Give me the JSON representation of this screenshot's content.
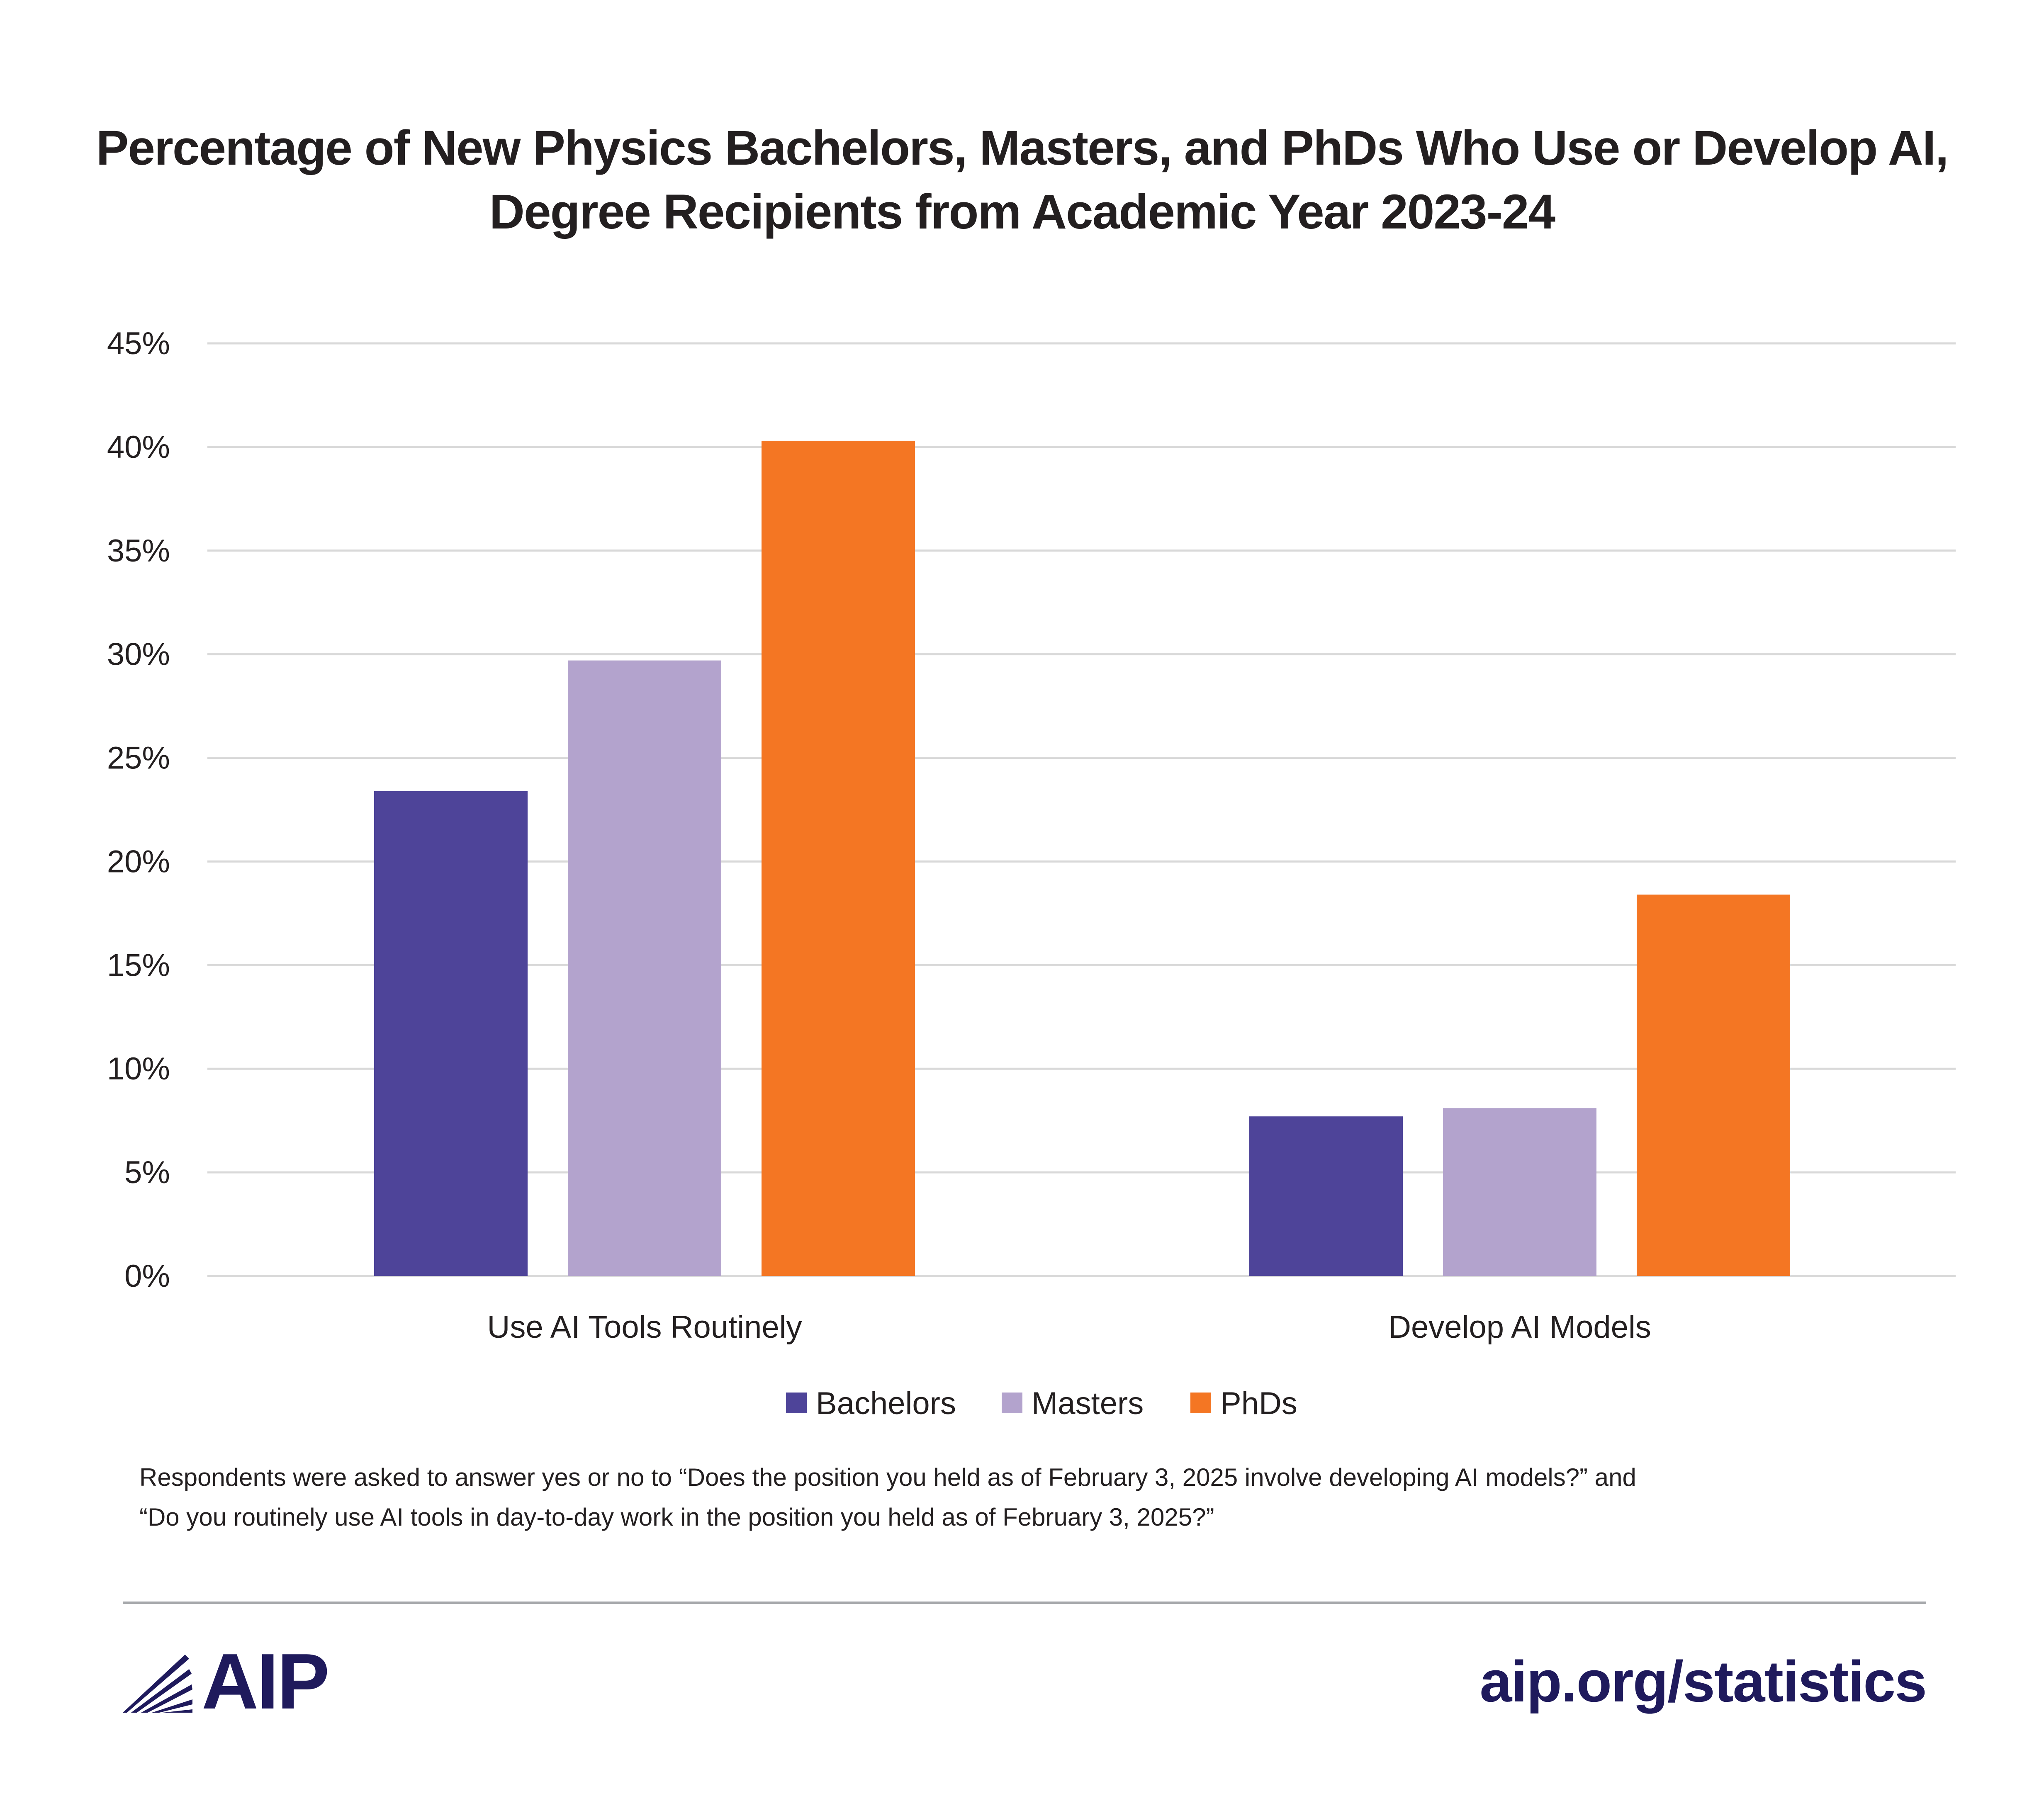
{
  "chart_data": {
    "type": "bar",
    "title_lines": [
      "Percentage of New Physics Bachelors, Masters, and PhDs Who Use or Develop AI,",
      "Degree Recipients from Academic Year 2023-24"
    ],
    "categories": [
      "Use AI Tools Routinely",
      "Develop AI Models"
    ],
    "series": [
      {
        "name": "Bachelors",
        "color": "#4e4499",
        "values": [
          23.4,
          7.7
        ]
      },
      {
        "name": "Masters",
        "color": "#b3a3cd",
        "values": [
          29.7,
          8.1
        ]
      },
      {
        "name": "PhDs",
        "color": "#f47623",
        "values": [
          40.3,
          18.4
        ]
      }
    ],
    "y_ticks": [
      "0%",
      "5%",
      "10%",
      "15%",
      "20%",
      "25%",
      "30%",
      "35%",
      "40%",
      "45%"
    ],
    "ylim": [
      0,
      45
    ],
    "grid": true,
    "legend_position": "bottom-center"
  },
  "footnote_lines": [
    "Respondents were asked to answer yes or no to “Does the position you held as of February 3, 2025 involve developing AI models?” and",
    "“Do you routinely use AI tools in day-to-day work in the position you held as of February 3, 2025?”"
  ],
  "logo": {
    "text": "AIP",
    "icon": "aip-fan-logo-icon",
    "color": "#1f1a5c"
  },
  "site_url": "aip.org/statistics"
}
